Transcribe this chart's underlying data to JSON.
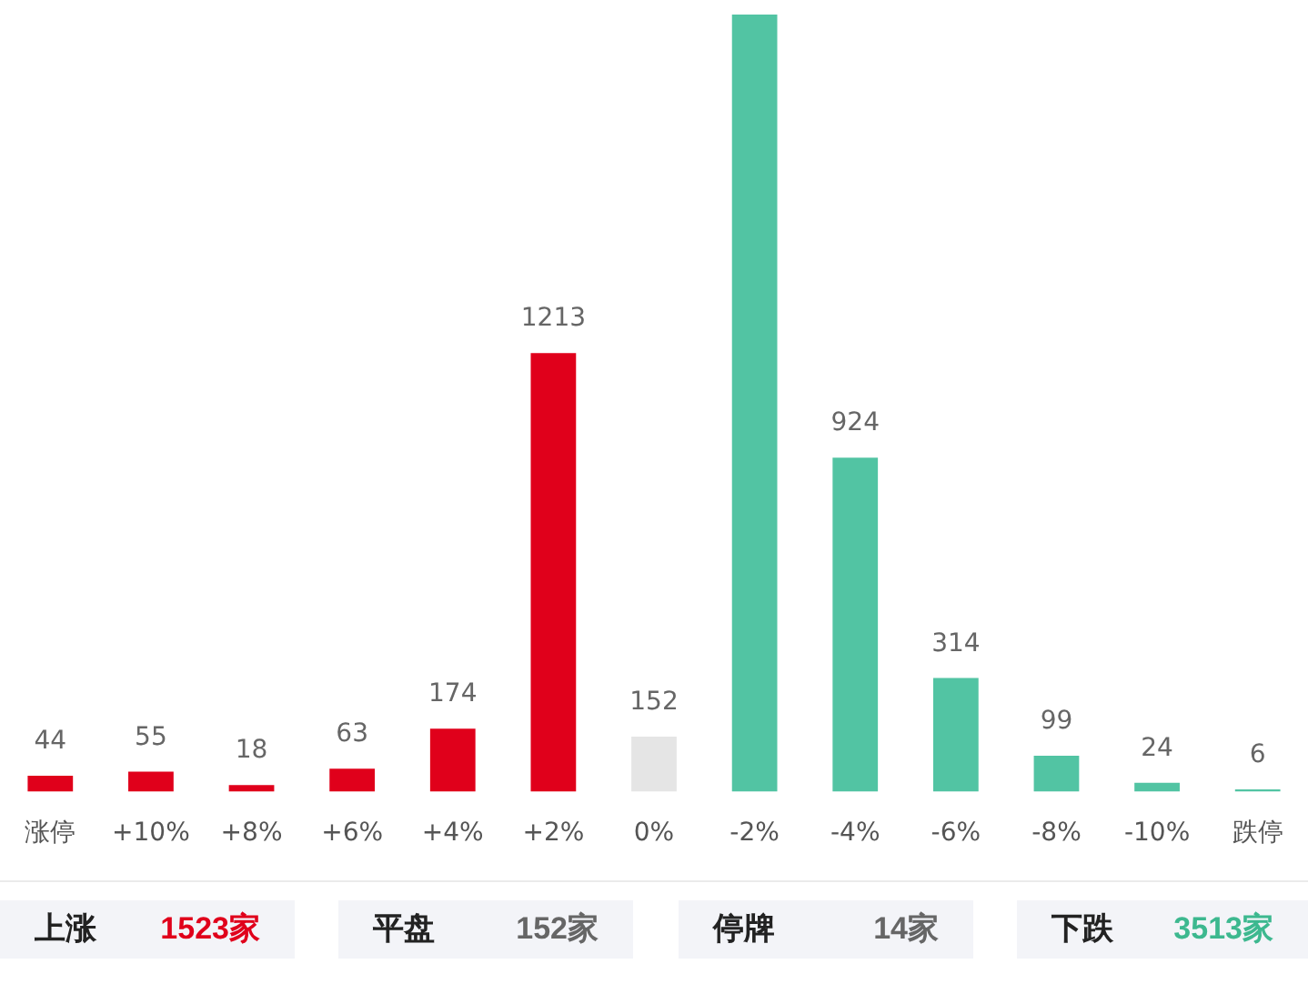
{
  "chart_data": {
    "type": "bar",
    "categories": [
      "涨停",
      "+10%",
      "+8%",
      "+6%",
      "+4%",
      "+2%",
      "0%",
      "-2%",
      "-4%",
      "-6%",
      "-8%",
      "-10%",
      "跌停"
    ],
    "values": [
      44,
      55,
      18,
      63,
      174,
      1213,
      152,
      2150,
      924,
      314,
      99,
      24,
      6
    ],
    "colors": [
      "#e0001b",
      "#e0001b",
      "#e0001b",
      "#e0001b",
      "#e0001b",
      "#e0001b",
      "#e5e5e5",
      "#52c4a3",
      "#52c4a3",
      "#52c4a3",
      "#52c4a3",
      "#52c4a3",
      "#52c4a3"
    ],
    "value_labels": [
      "44",
      "55",
      "18",
      "63",
      "174",
      "1213",
      "152",
      null,
      "924",
      "314",
      "99",
      "24",
      "6"
    ],
    "annotations": [
      "上涨 1523家",
      "平盘 152家",
      "停牌 14家",
      "下跌 3513家"
    ]
  }
}
